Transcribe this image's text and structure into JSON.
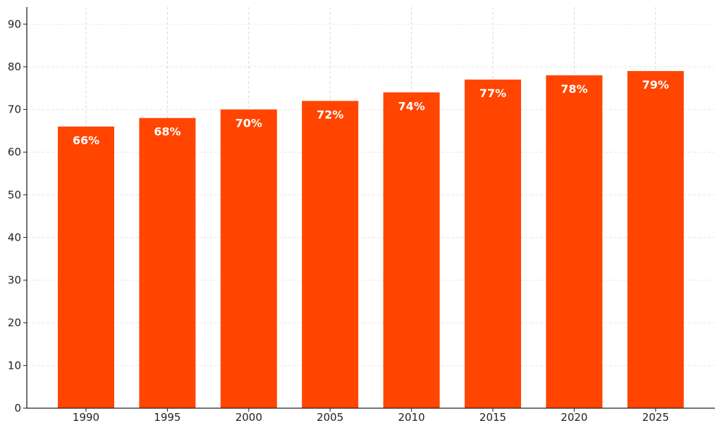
{
  "chart_data": {
    "type": "bar",
    "title": "",
    "xlabel": "",
    "ylabel": "",
    "categories": [
      "1990",
      "1995",
      "2000",
      "2005",
      "2010",
      "2015",
      "2020",
      "2025"
    ],
    "values": [
      66,
      68,
      70,
      72,
      74,
      77,
      78,
      79
    ],
    "data_labels": [
      "66%",
      "68%",
      "70%",
      "72%",
      "74%",
      "77%",
      "78%",
      "79%"
    ],
    "ylim": [
      0,
      94
    ],
    "yticks": [
      0,
      10,
      20,
      30,
      40,
      50,
      60,
      70,
      80,
      90
    ],
    "grid": true,
    "legend": "none",
    "bar_color": "#ff4500",
    "label_color": "#ffffff",
    "grid_color": "#cccccc",
    "axis_color": "#222222"
  }
}
